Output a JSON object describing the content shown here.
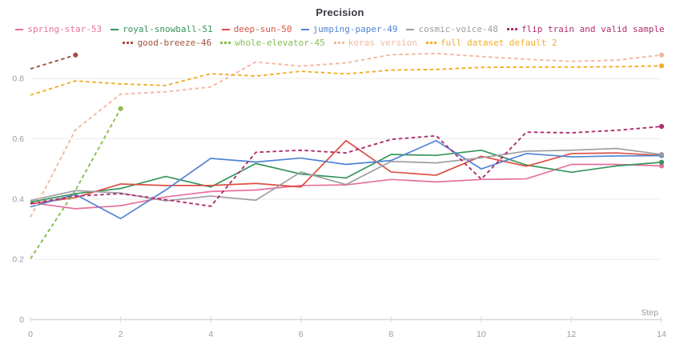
{
  "title": "Precision",
  "axes": {
    "x_label": "Step",
    "x_ticks": [
      0,
      2,
      4,
      6,
      8,
      10,
      12,
      14
    ],
    "y_ticks": [
      0,
      0.2,
      0.4,
      0.6,
      0.8
    ]
  },
  "chart_data": {
    "type": "line",
    "title": "Precision",
    "xlabel": "Step",
    "ylabel": "",
    "xlim": [
      0,
      14
    ],
    "ylim": [
      0,
      0.9
    ],
    "grid": true,
    "legend_position": "top",
    "x": [
      0,
      1,
      2,
      3,
      4,
      5,
      6,
      7,
      8,
      9,
      10,
      11,
      12,
      13,
      14
    ],
    "series": [
      {
        "name": "spring-star-53",
        "color": "#e8709f",
        "dash": false,
        "values": [
          0.388,
          0.368,
          0.378,
          0.407,
          0.425,
          0.43,
          0.445,
          0.447,
          0.465,
          0.457,
          0.465,
          0.467,
          0.515,
          0.515,
          0.51
        ]
      },
      {
        "name": "royal-snowball-51",
        "color": "#36945b",
        "dash": false,
        "values": [
          0.39,
          0.418,
          0.435,
          0.475,
          0.44,
          0.518,
          0.483,
          0.47,
          0.548,
          0.545,
          0.562,
          0.513,
          0.489,
          0.51,
          0.522
        ]
      },
      {
        "name": "deep-sun-50",
        "color": "#dd4f43",
        "dash": false,
        "values": [
          0.384,
          0.405,
          0.45,
          0.445,
          0.445,
          0.452,
          0.44,
          0.594,
          0.49,
          0.479,
          0.542,
          0.509,
          0.551,
          0.553,
          0.545
        ]
      },
      {
        "name": "jumping-paper-49",
        "color": "#5084d4",
        "dash": false,
        "values": [
          0.374,
          0.415,
          0.335,
          0.43,
          0.535,
          0.523,
          0.536,
          0.515,
          0.528,
          0.594,
          0.5,
          0.551,
          0.54,
          0.543,
          0.544
        ]
      },
      {
        "name": "cosmic-voice-48",
        "color": "#9d9da3",
        "dash": false,
        "values": [
          0.395,
          0.428,
          0.42,
          0.394,
          0.41,
          0.396,
          0.49,
          0.448,
          0.525,
          0.52,
          0.537,
          0.559,
          0.562,
          0.568,
          0.548
        ]
      },
      {
        "name": "flip train and valid sample",
        "color": "#b02d6d",
        "dash": true,
        "values": [
          0.385,
          0.41,
          0.418,
          0.398,
          0.376,
          0.555,
          0.562,
          0.553,
          0.598,
          0.61,
          0.466,
          0.622,
          0.62,
          0.628,
          0.641
        ]
      },
      {
        "name": "good-breeze-46",
        "color": "#a4513d",
        "dash": true,
        "values": [
          0.832,
          0.878
        ]
      },
      {
        "name": "whole-elevator-45",
        "color": "#87bd4f",
        "dash": true,
        "values": [
          0.202,
          0.43,
          0.7
        ]
      },
      {
        "name": "keras version",
        "color": "#f3b7a0",
        "dash": true,
        "values": [
          0.34,
          0.63,
          0.748,
          0.756,
          0.772,
          0.855,
          0.841,
          0.852,
          0.879,
          0.883,
          0.873,
          0.864,
          0.857,
          0.861,
          0.878
        ]
      },
      {
        "name": "full dataset default 2",
        "color": "#f1ae2b",
        "dash": true,
        "values": [
          0.745,
          0.792,
          0.782,
          0.777,
          0.816,
          0.808,
          0.824,
          0.815,
          0.828,
          0.83,
          0.837,
          0.838,
          0.838,
          0.839,
          0.842
        ]
      }
    ]
  }
}
